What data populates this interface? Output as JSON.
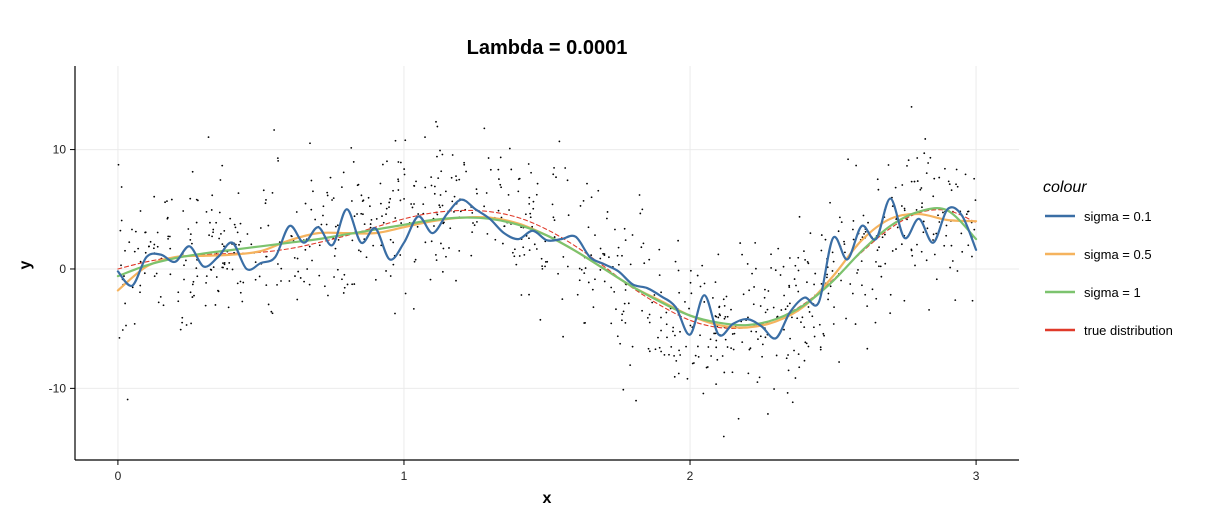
{
  "chart_data": {
    "type": "line",
    "title": "Lambda = 0.0001",
    "xlabel": "x",
    "ylabel": "y",
    "xlim": [
      -0.15,
      3.15
    ],
    "ylim": [
      -16,
      17
    ],
    "x_ticks": [
      0,
      1,
      2,
      3
    ],
    "x_tick_labels": [
      "0",
      "1",
      "2",
      "3"
    ],
    "y_ticks": [
      -10,
      0,
      10
    ],
    "y_tick_labels": [
      "-10",
      "0",
      "10"
    ],
    "grid": true,
    "legend": {
      "title": "colour",
      "placement": "right",
      "entries": [
        {
          "label": "sigma = 0.1",
          "color": "#3a6ea5"
        },
        {
          "label": "sigma = 0.5",
          "color": "#f5b35e"
        },
        {
          "label": "sigma = 1",
          "color": "#7cc36e"
        },
        {
          "label": "true distribution",
          "color": "#e03a2a"
        }
      ]
    },
    "series": [
      {
        "name": "sigma = 0.1",
        "color": "#3a6ea5",
        "style": "solid",
        "x": [
          0.0,
          0.05,
          0.1,
          0.15,
          0.2,
          0.25,
          0.3,
          0.35,
          0.4,
          0.45,
          0.5,
          0.55,
          0.6,
          0.65,
          0.7,
          0.75,
          0.8,
          0.85,
          0.9,
          0.95,
          1.0,
          1.05,
          1.1,
          1.15,
          1.2,
          1.25,
          1.3,
          1.35,
          1.4,
          1.45,
          1.5,
          1.55,
          1.6,
          1.65,
          1.7,
          1.75,
          1.8,
          1.85,
          1.9,
          1.95,
          2.0,
          2.05,
          2.1,
          2.15,
          2.2,
          2.25,
          2.3,
          2.35,
          2.4,
          2.45,
          2.5,
          2.55,
          2.6,
          2.65,
          2.7,
          2.75,
          2.8,
          2.85,
          2.9,
          2.95,
          3.0
        ],
        "y": [
          -0.2,
          -1.4,
          1.0,
          1.2,
          0.6,
          1.9,
          0.2,
          1.0,
          2.2,
          0.0,
          0.5,
          1.0,
          3.6,
          2.2,
          3.5,
          2.0,
          5.0,
          2.2,
          3.4,
          0.8,
          2.2,
          4.4,
          3.0,
          4.6,
          5.8,
          5.0,
          4.2,
          3.0,
          2.5,
          3.2,
          2.4,
          2.5,
          2.7,
          1.0,
          0.4,
          -0.2,
          -1.3,
          -1.6,
          -2.3,
          -3.2,
          -5.5,
          -2.2,
          -5.5,
          -4.6,
          -4.2,
          -4.8,
          -5.8,
          -3.6,
          -2.4,
          -2.8,
          2.6,
          0.8,
          3.6,
          2.5,
          5.9,
          2.6,
          4.2,
          2.2,
          5.0,
          4.5,
          1.6
        ]
      },
      {
        "name": "sigma = 0.5",
        "color": "#f5b35e",
        "style": "solid",
        "x": [
          0.0,
          0.1,
          0.2,
          0.3,
          0.4,
          0.5,
          0.6,
          0.7,
          0.8,
          0.9,
          1.0,
          1.1,
          1.2,
          1.3,
          1.4,
          1.5,
          1.6,
          1.7,
          1.8,
          1.9,
          2.0,
          2.1,
          2.2,
          2.3,
          2.4,
          2.5,
          2.6,
          2.7,
          2.8,
          2.9,
          3.0
        ],
        "y": [
          -1.8,
          0.2,
          1.0,
          1.1,
          1.2,
          1.5,
          2.4,
          3.0,
          3.0,
          3.0,
          3.5,
          4.0,
          4.3,
          4.3,
          3.8,
          2.8,
          1.5,
          0.0,
          -1.5,
          -2.7,
          -3.9,
          -4.7,
          -4.9,
          -4.4,
          -3.1,
          -0.6,
          2.4,
          4.2,
          4.6,
          4.1,
          4.0
        ]
      },
      {
        "name": "sigma = 1",
        "color": "#7cc36e",
        "style": "solid",
        "x": [
          0.0,
          0.1,
          0.2,
          0.3,
          0.4,
          0.5,
          0.6,
          0.7,
          0.8,
          0.9,
          1.0,
          1.1,
          1.2,
          1.3,
          1.4,
          1.5,
          1.6,
          1.7,
          1.8,
          1.9,
          2.0,
          2.1,
          2.2,
          2.3,
          2.4,
          2.5,
          2.6,
          2.7,
          2.8,
          2.9,
          3.0
        ],
        "y": [
          -0.6,
          0.3,
          0.9,
          1.3,
          1.6,
          1.9,
          2.2,
          2.5,
          2.9,
          3.3,
          3.7,
          4.1,
          4.3,
          4.2,
          3.7,
          2.8,
          1.5,
          0.0,
          -1.5,
          -2.8,
          -3.9,
          -4.5,
          -4.7,
          -4.2,
          -3.0,
          -1.0,
          1.5,
          3.6,
          4.8,
          4.9,
          2.5
        ]
      },
      {
        "name": "true distribution",
        "color": "#e03a2a",
        "style": "dashed",
        "x": [
          0.0,
          0.1,
          0.2,
          0.3,
          0.4,
          0.5,
          0.6,
          0.7,
          0.8,
          0.9,
          1.0,
          1.1,
          1.2,
          1.3,
          1.4,
          1.5,
          1.6,
          1.7,
          1.8,
          1.9,
          2.0,
          2.1,
          2.2,
          2.3,
          2.4,
          2.5,
          2.6,
          2.7,
          2.8,
          2.9,
          3.0
        ],
        "y": [
          0.0,
          0.6,
          1.0,
          1.2,
          1.3,
          1.4,
          1.7,
          2.2,
          2.8,
          3.5,
          4.2,
          4.7,
          4.9,
          4.8,
          4.3,
          3.3,
          1.9,
          0.2,
          -1.6,
          -3.1,
          -4.3,
          -4.9,
          -4.9,
          -4.2,
          -2.9,
          -0.9,
          1.4,
          3.4,
          4.7,
          4.9,
          3.9
        ]
      }
    ],
    "scatter": {
      "name": "observations",
      "color": "#000000",
      "count": 900,
      "noise_sd": 3.2
    }
  }
}
